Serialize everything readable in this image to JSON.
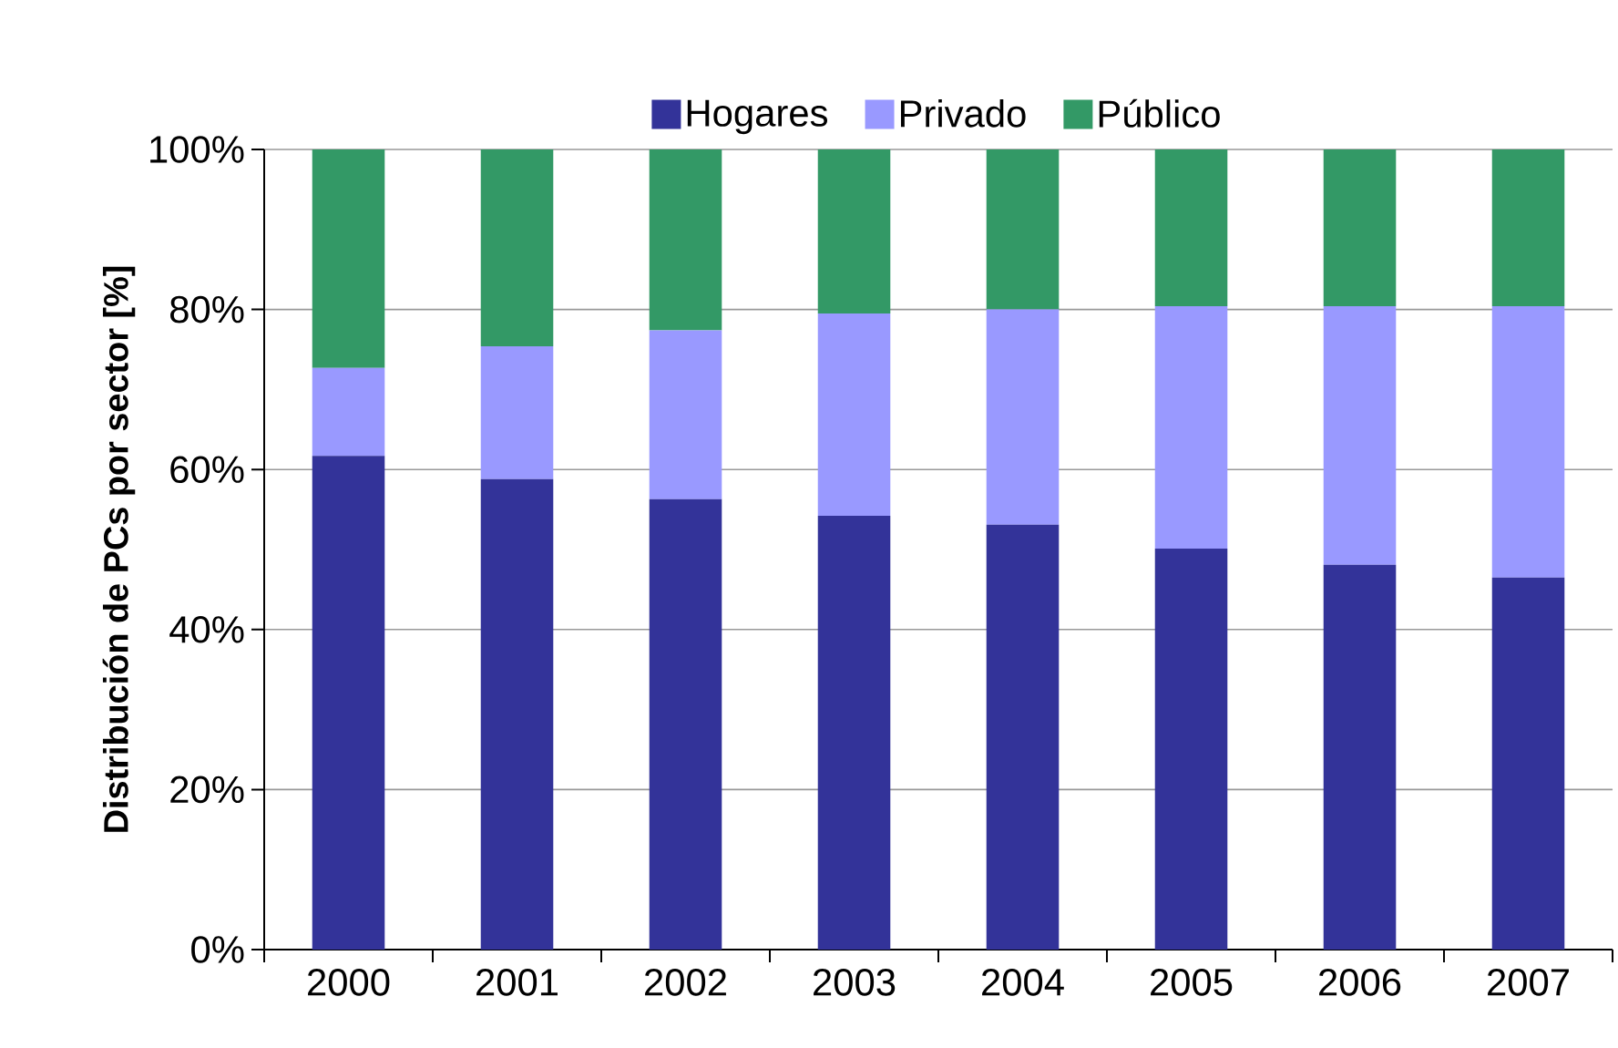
{
  "chart_data": {
    "type": "bar",
    "stacked": true,
    "ylabel": "Distribución de PCs por sector [%]",
    "categories": [
      "2000",
      "2001",
      "2002",
      "2003",
      "2004",
      "2005",
      "2006",
      "2007"
    ],
    "series": [
      {
        "name": "Hogares",
        "color": "#333399",
        "values": [
          61.7,
          58.8,
          56.3,
          54.2,
          53.1,
          50.1,
          48.1,
          46.5
        ]
      },
      {
        "name": "Privado",
        "color": "#9999ff",
        "values": [
          11.0,
          16.6,
          21.1,
          25.3,
          26.9,
          30.3,
          32.3,
          33.9
        ]
      },
      {
        "name": "Público",
        "color": "#339966",
        "values": [
          27.3,
          24.6,
          22.6,
          20.5,
          20.0,
          19.6,
          19.6,
          19.6
        ]
      }
    ],
    "ylim": [
      0,
      100
    ],
    "yticks": [
      {
        "value": 0,
        "label": "0%"
      },
      {
        "value": 20,
        "label": "20%"
      },
      {
        "value": 40,
        "label": "40%"
      },
      {
        "value": 60,
        "label": "60%"
      },
      {
        "value": 80,
        "label": "80%"
      },
      {
        "value": 100,
        "label": "100%"
      }
    ],
    "grid": "y",
    "legend": "top"
  }
}
